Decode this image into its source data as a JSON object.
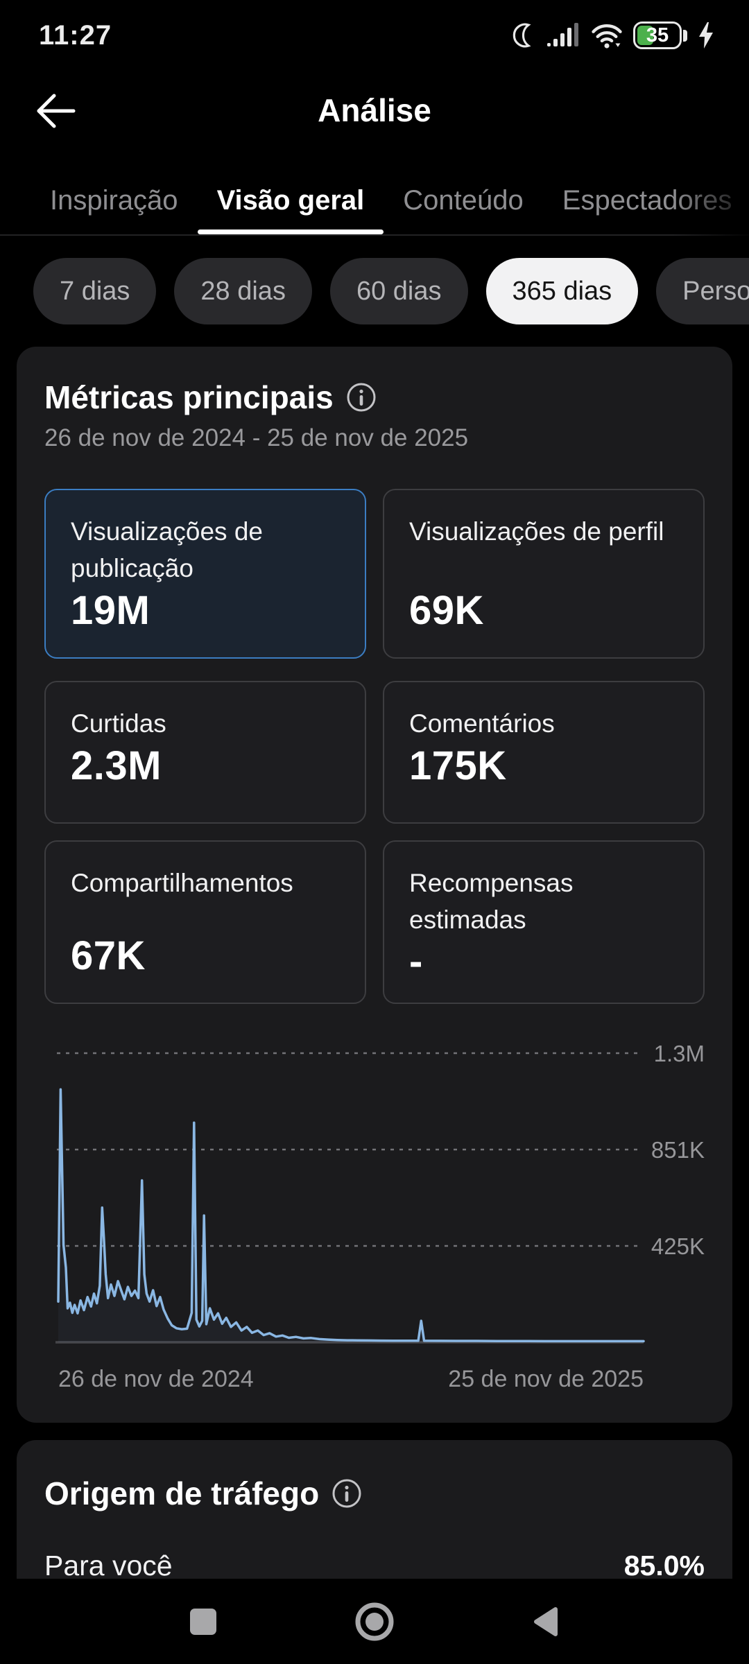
{
  "status_bar": {
    "time": "11:27",
    "battery_level": "35",
    "icons": [
      "moon-icon",
      "signal-icon",
      "wifi-icon",
      "battery-icon",
      "charging-bolt-icon"
    ]
  },
  "header": {
    "title": "Análise"
  },
  "tabs": {
    "items": [
      {
        "label": "Inspiração",
        "active": false
      },
      {
        "label": "Visão geral",
        "active": true
      },
      {
        "label": "Conteúdo",
        "active": false
      },
      {
        "label": "Espectadores",
        "active": false
      }
    ]
  },
  "filters": {
    "items": [
      {
        "label": "7 dias",
        "selected": false
      },
      {
        "label": "28 dias",
        "selected": false
      },
      {
        "label": "60 dias",
        "selected": false
      },
      {
        "label": "365 dias",
        "selected": true
      },
      {
        "label": "Personalizar",
        "selected": false
      }
    ]
  },
  "metrics": {
    "title": "Métricas principais",
    "date_range": "26 de nov de 2024 - 25 de nov de 2025",
    "cards": [
      {
        "label": "Visualizações de publicação",
        "value": "19M",
        "selected": true
      },
      {
        "label": "Visualizações de perfil",
        "value": "69K",
        "selected": false
      },
      {
        "label": "Curtidas",
        "value": "2.3M",
        "selected": false
      },
      {
        "label": "Comentários",
        "value": "175K",
        "selected": false
      },
      {
        "label": "Compartilhamentos",
        "value": "67K",
        "selected": false
      },
      {
        "label": "Recompensas estimadas",
        "value": "-",
        "selected": false
      }
    ]
  },
  "chart_data": {
    "type": "line",
    "series_name": "Visualizações de publicação por dia",
    "x_axis_labels": [
      "26 de nov de 2024",
      "25 de nov de 2025"
    ],
    "y_ticks": [
      {
        "value": 425666,
        "label": "425K"
      },
      {
        "value": 851333,
        "label": "851K"
      },
      {
        "value": 1277000,
        "label": "1.3M"
      }
    ],
    "ylim": [
      0,
      1430000
    ],
    "grid": "horizontal-dashed",
    "line_color": "#8ab7e3",
    "points": [
      [
        0.0,
        180000
      ],
      [
        0.004,
        1117000
      ],
      [
        0.009,
        430000
      ],
      [
        0.013,
        330000
      ],
      [
        0.016,
        150000
      ],
      [
        0.02,
        175000
      ],
      [
        0.024,
        130000
      ],
      [
        0.028,
        165000
      ],
      [
        0.033,
        128000
      ],
      [
        0.038,
        185000
      ],
      [
        0.044,
        142000
      ],
      [
        0.05,
        200000
      ],
      [
        0.056,
        158000
      ],
      [
        0.061,
        215000
      ],
      [
        0.066,
        172000
      ],
      [
        0.071,
        250000
      ],
      [
        0.075,
        595000
      ],
      [
        0.078,
        460000
      ],
      [
        0.081,
        300000
      ],
      [
        0.085,
        195000
      ],
      [
        0.09,
        255000
      ],
      [
        0.096,
        205000
      ],
      [
        0.102,
        270000
      ],
      [
        0.108,
        225000
      ],
      [
        0.113,
        190000
      ],
      [
        0.119,
        245000
      ],
      [
        0.125,
        205000
      ],
      [
        0.131,
        228000
      ],
      [
        0.137,
        195000
      ],
      [
        0.143,
        715000
      ],
      [
        0.147,
        300000
      ],
      [
        0.151,
        215000
      ],
      [
        0.156,
        180000
      ],
      [
        0.162,
        230000
      ],
      [
        0.168,
        160000
      ],
      [
        0.174,
        200000
      ],
      [
        0.18,
        145000
      ],
      [
        0.187,
        105000
      ],
      [
        0.194,
        75000
      ],
      [
        0.202,
        62000
      ],
      [
        0.211,
        58000
      ],
      [
        0.22,
        60000
      ],
      [
        0.228,
        130000
      ],
      [
        0.232,
        970000
      ],
      [
        0.236,
        100000
      ],
      [
        0.241,
        70000
      ],
      [
        0.246,
        95000
      ],
      [
        0.249,
        560000
      ],
      [
        0.253,
        80000
      ],
      [
        0.259,
        150000
      ],
      [
        0.266,
        100000
      ],
      [
        0.273,
        128000
      ],
      [
        0.28,
        82000
      ],
      [
        0.287,
        108000
      ],
      [
        0.295,
        68000
      ],
      [
        0.304,
        88000
      ],
      [
        0.313,
        52000
      ],
      [
        0.322,
        68000
      ],
      [
        0.331,
        42000
      ],
      [
        0.341,
        52000
      ],
      [
        0.351,
        32000
      ],
      [
        0.361,
        40000
      ],
      [
        0.372,
        25000
      ],
      [
        0.383,
        30000
      ],
      [
        0.394,
        20000
      ],
      [
        0.406,
        24000
      ],
      [
        0.419,
        17000
      ],
      [
        0.432,
        19000
      ],
      [
        0.446,
        14000
      ],
      [
        0.461,
        12000
      ],
      [
        0.477,
        10000
      ],
      [
        0.494,
        9000
      ],
      [
        0.512,
        8500
      ],
      [
        0.531,
        8000
      ],
      [
        0.551,
        7500
      ],
      [
        0.572,
        7000
      ],
      [
        0.594,
        7000
      ],
      [
        0.615,
        7000
      ],
      [
        0.62,
        95000
      ],
      [
        0.625,
        7000
      ],
      [
        0.65,
        6500
      ],
      [
        0.68,
        6000
      ],
      [
        0.715,
        6000
      ],
      [
        0.75,
        5500
      ],
      [
        0.79,
        5500
      ],
      [
        0.83,
        5000
      ],
      [
        0.87,
        5000
      ],
      [
        0.91,
        5000
      ],
      [
        0.95,
        5000
      ],
      [
        1.0,
        5000
      ]
    ]
  },
  "traffic": {
    "title": "Origem de tráfego",
    "rows": [
      {
        "label": "Para você",
        "value": "85.0%"
      }
    ]
  },
  "nav_bar": {
    "icons": [
      "recents-square-icon",
      "home-circle-icon",
      "back-triangle-icon"
    ]
  },
  "colors": {
    "background": "#000000",
    "card_bg": "#1b1b1d",
    "tile_border": "#3d3d40",
    "selected_tile_border": "#3b7dc2",
    "selected_tile_bg": "#1b2430",
    "pill_bg": "#29292c",
    "pill_selected_bg": "#f2f2f3",
    "text_secondary": "#9a9a9d",
    "chart_line": "#8ab7e3",
    "battery_green": "#4cb04c"
  }
}
